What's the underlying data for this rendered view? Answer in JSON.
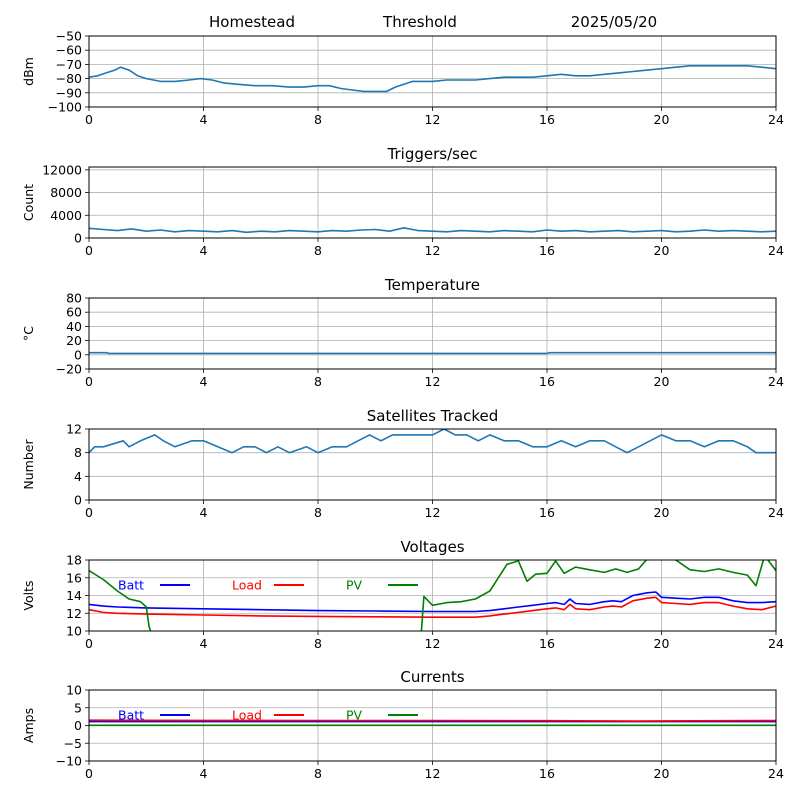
{
  "header": {
    "station": "Homestead",
    "metric": "Threshold",
    "date": "2025/05/20"
  },
  "colors": {
    "trace": "#1f77b4",
    "batt": "#0000ff",
    "load": "#ff0000",
    "pv": "#008000",
    "grid": "#b0b0b0"
  },
  "chart_data": [
    {
      "id": "threshold",
      "type": "line",
      "title": "",
      "ylabel": "dBm",
      "xlim": [
        0,
        24
      ],
      "xticks": [
        "0",
        "4",
        "8",
        "12",
        "16",
        "20",
        "24"
      ],
      "ylim": [
        -100,
        -50
      ],
      "yticks": [
        "-100",
        "-90",
        "-80",
        "-70",
        "-60",
        "-50"
      ],
      "grid": true,
      "series": [
        {
          "color": "#1f77b4",
          "x": [
            0,
            0.3,
            0.6,
            0.9,
            1.1,
            1.4,
            1.7,
            2.0,
            2.5,
            3.0,
            3.5,
            3.9,
            4.3,
            4.7,
            5.2,
            5.8,
            6.4,
            7.0,
            7.5,
            8.0,
            8.4,
            8.8,
            9.2,
            9.6,
            10.0,
            10.4,
            10.7,
            11.0,
            11.3,
            11.7,
            12.0,
            12.5,
            13.0,
            13.5,
            14.0,
            14.5,
            15.0,
            15.5,
            16.0,
            16.5,
            17.0,
            17.5,
            18.0,
            18.5,
            19.0,
            19.5,
            20.0,
            20.5,
            21.0,
            21.5,
            22.0,
            22.5,
            23.0,
            23.5,
            24.0
          ],
          "y": [
            -79,
            -78,
            -76,
            -74,
            -72,
            -74,
            -78,
            -80,
            -82,
            -82,
            -81,
            -80,
            -81,
            -83,
            -84,
            -85,
            -85,
            -86,
            -86,
            -85,
            -85,
            -87,
            -88,
            -89,
            -89,
            -89,
            -86,
            -84,
            -82,
            -82,
            -82,
            -81,
            -81,
            -81,
            -80,
            -79,
            -79,
            -79,
            -78,
            -77,
            -78,
            -78,
            -77,
            -76,
            -75,
            -74,
            -73,
            -72,
            -71,
            -71,
            -71,
            -71,
            -71,
            -72,
            -73
          ]
        }
      ]
    },
    {
      "id": "triggers",
      "type": "line",
      "title": "Triggers/sec",
      "ylabel": "Count",
      "xlim": [
        0,
        24
      ],
      "xticks": [
        "0",
        "4",
        "8",
        "12",
        "16",
        "20",
        "24"
      ],
      "ylim": [
        0,
        12500
      ],
      "yticks": [
        "0",
        "4000",
        "8000",
        "12000"
      ],
      "ytick_values": [
        0,
        4000,
        8000,
        12000
      ],
      "grid": true,
      "series": [
        {
          "color": "#1f77b4",
          "x": [
            0,
            0.5,
            1.0,
            1.5,
            2.0,
            2.5,
            3.0,
            3.5,
            4.0,
            4.5,
            5.0,
            5.5,
            6.0,
            6.5,
            7.0,
            7.5,
            8.0,
            8.5,
            9.0,
            9.5,
            10.0,
            10.5,
            11.0,
            11.5,
            12.0,
            12.5,
            13.0,
            13.5,
            14.0,
            14.5,
            15.0,
            15.5,
            16.0,
            16.5,
            17.0,
            17.5,
            18.0,
            18.5,
            19.0,
            19.5,
            20.0,
            20.5,
            21.0,
            21.5,
            22.0,
            22.5,
            23.0,
            23.5,
            24.0
          ],
          "y": [
            1700,
            1500,
            1300,
            1600,
            1200,
            1400,
            1100,
            1300,
            1200,
            1100,
            1300,
            1000,
            1200,
            1100,
            1300,
            1200,
            1100,
            1300,
            1200,
            1400,
            1500,
            1200,
            1800,
            1300,
            1200,
            1100,
            1300,
            1200,
            1100,
            1300,
            1200,
            1100,
            1400,
            1200,
            1300,
            1100,
            1200,
            1300,
            1100,
            1200,
            1300,
            1100,
            1200,
            1400,
            1200,
            1300,
            1200,
            1100,
            1200
          ]
        }
      ]
    },
    {
      "id": "temperature",
      "type": "line",
      "title": "Temperature",
      "ylabel": "°C",
      "xlim": [
        0,
        24
      ],
      "xticks": [
        "0",
        "4",
        "8",
        "12",
        "16",
        "20",
        "24"
      ],
      "ylim": [
        -20,
        80
      ],
      "yticks": [
        "-20",
        "0",
        "20",
        "40",
        "60",
        "80"
      ],
      "grid": true,
      "series": [
        {
          "color": "#1f77b4",
          "x": [
            0,
            0.6,
            0.7,
            16.0,
            16.1,
            24.0
          ],
          "y": [
            3,
            3,
            2,
            2,
            3,
            3
          ]
        }
      ]
    },
    {
      "id": "satellites",
      "type": "line",
      "title": "Satellites Tracked",
      "ylabel": "Number",
      "xlim": [
        0,
        24
      ],
      "xticks": [
        "0",
        "4",
        "8",
        "12",
        "16",
        "20",
        "24"
      ],
      "ylim": [
        0,
        12
      ],
      "yticks": [
        "0",
        "4",
        "8",
        "12"
      ],
      "grid": true,
      "series": [
        {
          "color": "#1f77b4",
          "x": [
            0,
            0.2,
            0.5,
            1.2,
            1.4,
            1.8,
            2.3,
            2.6,
            3.0,
            3.6,
            4.0,
            4.5,
            5.0,
            5.4,
            5.8,
            6.2,
            6.6,
            7.0,
            7.6,
            8.0,
            8.5,
            9.0,
            9.4,
            9.8,
            10.2,
            10.6,
            11.0,
            11.5,
            12.0,
            12.4,
            12.8,
            13.2,
            13.6,
            14.0,
            14.5,
            15.0,
            15.5,
            16.0,
            16.5,
            17.0,
            17.5,
            18.0,
            18.4,
            18.8,
            19.2,
            19.6,
            20.0,
            20.5,
            21.0,
            21.5,
            22.0,
            22.5,
            23.0,
            23.3,
            24.0
          ],
          "y": [
            8,
            9,
            9,
            10,
            9,
            10,
            11,
            10,
            9,
            10,
            10,
            9,
            8,
            9,
            9,
            8,
            9,
            8,
            9,
            8,
            9,
            9,
            10,
            11,
            10,
            11,
            11,
            11,
            11,
            12,
            11,
            11,
            10,
            11,
            10,
            10,
            9,
            9,
            10,
            9,
            10,
            10,
            9,
            8,
            9,
            10,
            11,
            10,
            10,
            9,
            10,
            10,
            9,
            8,
            8
          ]
        }
      ]
    },
    {
      "id": "voltages",
      "type": "line",
      "title": "Voltages",
      "ylabel": "Volts",
      "xlim": [
        0,
        24
      ],
      "xticks": [
        "0",
        "4",
        "8",
        "12",
        "16",
        "20",
        "24"
      ],
      "ylim": [
        10,
        18
      ],
      "yticks": [
        "10",
        "12",
        "14",
        "16",
        "18"
      ],
      "grid": true,
      "legend": [
        "Batt",
        "Load",
        "PV"
      ],
      "series": [
        {
          "name": "Batt",
          "color": "#0000ff",
          "x": [
            0,
            0.5,
            1.0,
            2.0,
            4.0,
            6.0,
            8.0,
            10.0,
            12.0,
            13.5,
            14.0,
            14.5,
            15.0,
            15.5,
            16.0,
            16.3,
            16.6,
            16.8,
            17.0,
            17.5,
            18.0,
            18.3,
            18.6,
            19.0,
            19.5,
            19.8,
            20.0,
            20.5,
            21.0,
            21.5,
            22.0,
            22.5,
            23.0,
            23.5,
            24.0
          ],
          "y": [
            13.0,
            12.8,
            12.7,
            12.6,
            12.5,
            12.4,
            12.3,
            12.25,
            12.2,
            12.2,
            12.3,
            12.5,
            12.7,
            12.9,
            13.1,
            13.2,
            13.0,
            13.6,
            13.1,
            13.0,
            13.3,
            13.4,
            13.3,
            14.0,
            14.3,
            14.4,
            13.8,
            13.7,
            13.6,
            13.8,
            13.8,
            13.4,
            13.2,
            13.2,
            13.3
          ]
        },
        {
          "name": "Load",
          "color": "#ff0000",
          "x": [
            0,
            0.5,
            1.0,
            2.0,
            4.0,
            6.0,
            8.0,
            10.0,
            12.0,
            13.5,
            14.0,
            14.5,
            15.0,
            15.5,
            16.0,
            16.3,
            16.6,
            16.8,
            17.0,
            17.5,
            18.0,
            18.3,
            18.6,
            19.0,
            19.5,
            19.8,
            20.0,
            20.5,
            21.0,
            21.5,
            22.0,
            22.5,
            23.0,
            23.5,
            24.0
          ],
          "y": [
            12.4,
            12.1,
            12.0,
            11.9,
            11.8,
            11.7,
            11.65,
            11.6,
            11.55,
            11.55,
            11.7,
            11.9,
            12.1,
            12.3,
            12.5,
            12.6,
            12.4,
            13.0,
            12.5,
            12.4,
            12.7,
            12.8,
            12.7,
            13.4,
            13.7,
            13.8,
            13.2,
            13.1,
            13.0,
            13.2,
            13.2,
            12.8,
            12.5,
            12.4,
            12.8
          ]
        },
        {
          "name": "PV",
          "color": "#008000",
          "x": [
            0,
            0.5,
            1.0,
            1.4,
            1.8,
            2.0,
            2.1,
            2.2,
            11.6,
            11.7,
            12.0,
            12.5,
            13.0,
            13.5,
            14.0,
            14.3,
            14.6,
            15.0,
            15.3,
            15.6,
            16.0,
            16.3,
            16.6,
            17.0,
            17.5,
            18.0,
            18.4,
            18.8,
            19.2,
            19.6,
            20.0,
            20.5,
            21.0,
            21.5,
            22.0,
            22.5,
            23.0,
            23.3,
            23.6,
            24.0
          ],
          "y": [
            16.8,
            15.8,
            14.5,
            13.6,
            13.3,
            12.7,
            10.5,
            9.5,
            9.5,
            13.9,
            12.9,
            13.2,
            13.3,
            13.6,
            14.5,
            16.0,
            17.5,
            17.9,
            15.6,
            16.4,
            16.5,
            17.9,
            16.5,
            17.2,
            16.9,
            16.6,
            17.0,
            16.6,
            17.0,
            18.5,
            18.5,
            18.0,
            16.9,
            16.7,
            17.0,
            16.6,
            16.3,
            15.1,
            18.5,
            16.8
          ]
        }
      ]
    },
    {
      "id": "currents",
      "type": "line",
      "title": "Currents",
      "ylabel": "Amps",
      "xlim": [
        0,
        24
      ],
      "xticks": [
        "0",
        "4",
        "8",
        "12",
        "16",
        "20",
        "24"
      ],
      "ylim": [
        -10,
        10
      ],
      "yticks": [
        "-10",
        "-5",
        "0",
        "5",
        "10"
      ],
      "grid": true,
      "legend": [
        "Batt",
        "Load",
        "PV"
      ],
      "series": [
        {
          "name": "Batt",
          "color": "#0000ff",
          "x": [
            0,
            24
          ],
          "y": [
            1.1,
            1.1
          ]
        },
        {
          "name": "Load",
          "color": "#ff0000",
          "x": [
            0,
            4,
            8,
            12,
            16,
            19,
            20,
            24
          ],
          "y": [
            1.5,
            1.45,
            1.4,
            1.4,
            1.35,
            1.25,
            1.3,
            1.4
          ]
        },
        {
          "name": "PV",
          "color": "#008000",
          "x": [
            0,
            24
          ],
          "y": [
            0.05,
            0.05
          ]
        }
      ]
    }
  ]
}
